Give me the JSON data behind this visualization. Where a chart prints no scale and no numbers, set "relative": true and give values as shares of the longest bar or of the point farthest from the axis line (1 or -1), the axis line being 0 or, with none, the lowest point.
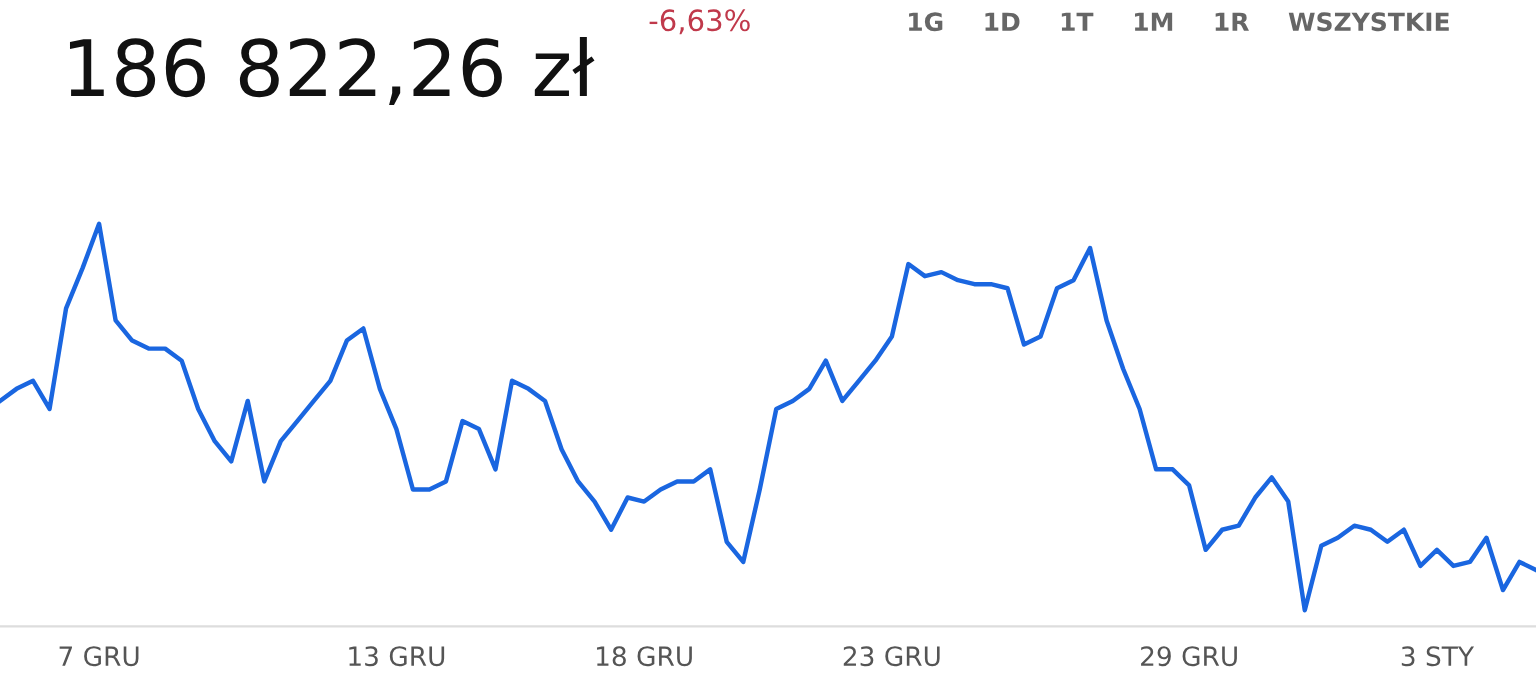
{
  "chart_data": {
    "type": "line",
    "title": "186 822,26 zł",
    "subtitle": "-6,63%",
    "annotations": [
      "1G",
      "1D",
      "1T",
      "1M",
      "1R",
      "WSZYSTKIE"
    ],
    "relative": true,
    "grid": false,
    "legend": false,
    "marker": "none",
    "line_style": "solid",
    "categories": [
      null,
      null,
      null,
      null,
      null,
      null,
      "7 GRU",
      null,
      null,
      null,
      null,
      null,
      null,
      null,
      null,
      null,
      null,
      null,
      null,
      null,
      null,
      null,
      null,
      null,
      "13 GRU",
      null,
      null,
      null,
      null,
      null,
      null,
      null,
      null,
      null,
      null,
      null,
      null,
      null,
      null,
      "18 GRU",
      null,
      null,
      null,
      null,
      null,
      null,
      null,
      null,
      null,
      null,
      null,
      null,
      null,
      null,
      "23 GRU",
      null,
      null,
      null,
      null,
      null,
      null,
      null,
      null,
      null,
      null,
      null,
      null,
      null,
      null,
      null,
      null,
      null,
      "29 GRU",
      null,
      null,
      null,
      null,
      null,
      null,
      null,
      null,
      null,
      null,
      null,
      null,
      null,
      null,
      "3 STY",
      null,
      null,
      null,
      null,
      null,
      null
    ],
    "series": [
      {
        "color": "#1a66e0",
        "values": [
          0.56,
          0.59,
          0.61,
          0.54,
          0.79,
          0.89,
          1.0,
          0.76,
          0.71,
          0.69,
          0.69,
          0.66,
          0.54,
          0.46,
          0.41,
          0.56,
          0.36,
          0.46,
          0.51,
          0.56,
          0.61,
          0.71,
          0.74,
          0.59,
          0.49,
          0.34,
          0.34,
          0.36,
          0.51,
          0.49,
          0.39,
          0.61,
          0.59,
          0.56,
          0.44,
          0.36,
          0.31,
          0.24,
          0.32,
          0.31,
          0.34,
          0.36,
          0.36,
          0.39,
          0.21,
          0.16,
          0.34,
          0.54,
          0.56,
          0.59,
          0.66,
          0.56,
          0.61,
          0.66,
          0.72,
          0.9,
          0.87,
          0.88,
          0.86,
          0.85,
          0.85,
          0.84,
          0.7,
          0.72,
          0.84,
          0.86,
          0.94,
          0.76,
          0.64,
          0.54,
          0.39,
          0.39,
          0.35,
          0.19,
          0.24,
          0.25,
          0.32,
          0.37,
          0.31,
          0.04,
          0.2,
          0.22,
          0.25,
          0.24,
          0.21,
          0.24,
          0.15,
          0.19,
          0.15,
          0.16,
          0.22,
          0.09,
          0.16,
          0.14
        ]
      }
    ]
  }
}
